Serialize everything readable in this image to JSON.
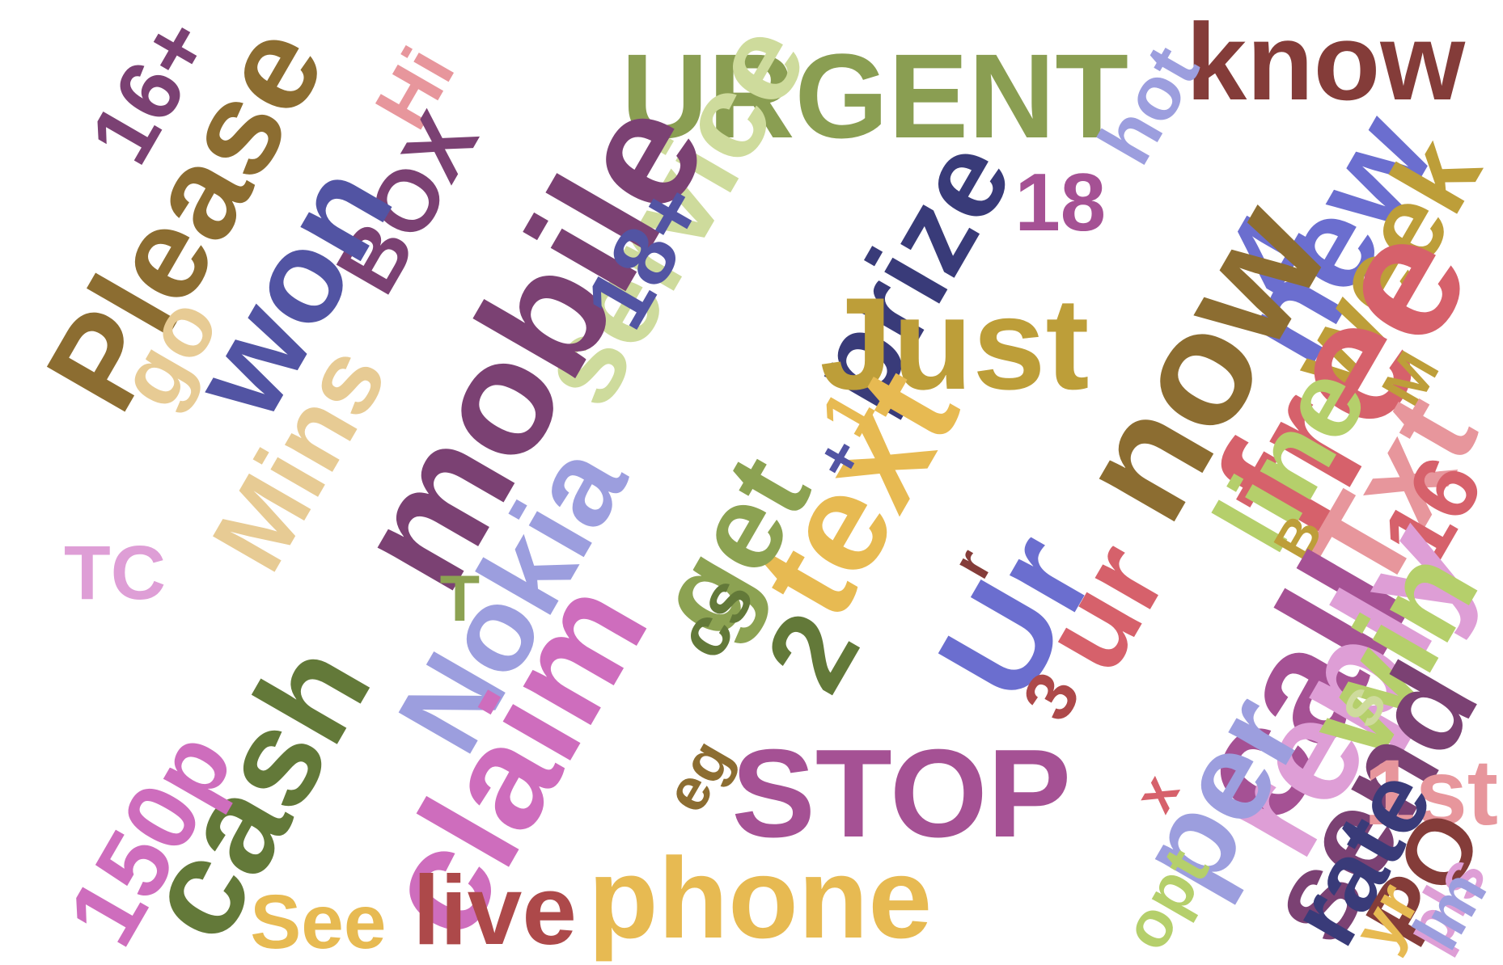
{
  "words": [
    {
      "text": "URGENT",
      "color": "#8a9e52"
    },
    {
      "text": "know",
      "color": "#843c39"
    },
    {
      "text": "service",
      "color": "#cedb9c"
    },
    {
      "text": "hot",
      "color": "#9c9ede"
    },
    {
      "text": "16+",
      "color": "#7b4173"
    },
    {
      "text": "Hi",
      "color": "#e7969c"
    },
    {
      "text": "Please",
      "color": "#8c6d31"
    },
    {
      "text": "BOX",
      "color": "#7b4173"
    },
    {
      "text": "won",
      "color": "#5254a3"
    },
    {
      "text": "mobile",
      "color": "#7b4173"
    },
    {
      "text": "18+",
      "color": "#5254a3"
    },
    {
      "text": "prize",
      "color": "#393b79"
    },
    {
      "text": "18",
      "color": "#a55194"
    },
    {
      "text": "new",
      "color": "#6b6ecf"
    },
    {
      "text": "week",
      "color": "#bd9e39"
    },
    {
      "text": "4",
      "color": "#6b6ecf"
    },
    {
      "text": "free",
      "color": "#d6616b"
    },
    {
      "text": "now",
      "color": "#8c6d31"
    },
    {
      "text": "Just",
      "color": "#bd9e39"
    },
    {
      "text": "go",
      "color": "#e7cb94"
    },
    {
      "text": "Mins",
      "color": "#e7cb94"
    },
    {
      "text": "1",
      "color": "#e7ba52"
    },
    {
      "text": "M",
      "color": "#bd9e39"
    },
    {
      "text": "Txt",
      "color": "#e7969c"
    },
    {
      "text": "16",
      "color": "#d6616b"
    },
    {
      "text": "Nokia",
      "color": "#9c9ede"
    },
    {
      "text": "text",
      "color": "#e7ba52"
    },
    {
      "text": "get",
      "color": "#8ca252"
    },
    {
      "text": "+",
      "color": "#5254a3"
    },
    {
      "text": "line",
      "color": "#b5cf6b"
    },
    {
      "text": "TC",
      "color": "#de9ed6"
    },
    {
      "text": "T",
      "color": "#8ca252"
    },
    {
      "text": "B",
      "color": "#bd9e39"
    },
    {
      "text": "cs",
      "color": "#637939"
    },
    {
      "text": "2",
      "color": "#637939"
    },
    {
      "text": "Ur",
      "color": "#6b6ecf"
    },
    {
      "text": "ur",
      "color": "#d6616b"
    },
    {
      "text": "r",
      "color": "#843c39"
    },
    {
      "text": "call",
      "color": "#a55194"
    },
    {
      "text": "reply",
      "color": "#de9ed6"
    },
    {
      "text": "win",
      "color": "#b5cf6b"
    },
    {
      "text": "3",
      "color": "#ad494a"
    },
    {
      "text": "cash",
      "color": "#637939"
    },
    {
      "text": "claim",
      "color": "#ce6dbd"
    },
    {
      "text": "STOP",
      "color": "#a55194"
    },
    {
      "text": "s",
      "color": "#cedb9c"
    },
    {
      "text": "150p",
      "color": "#ce6dbd"
    },
    {
      "text": "eg",
      "color": "#8c6d31"
    },
    {
      "text": "per",
      "color": "#9c9ede"
    },
    {
      "text": "send",
      "color": "#7b4173"
    },
    {
      "text": "1st",
      "color": "#e7969c"
    },
    {
      "text": "x",
      "color": "#d6616b"
    },
    {
      "text": "rate",
      "color": "#393b79"
    },
    {
      "text": "PO",
      "color": "#843c39"
    },
    {
      "text": "See",
      "color": "#e7ba52"
    },
    {
      "text": "live",
      "color": "#ad494a"
    },
    {
      "text": "phone",
      "color": "#e7ba52"
    },
    {
      "text": "opt",
      "color": "#b5cf6b"
    },
    {
      "text": "yr",
      "color": "#e7ba52"
    },
    {
      "text": "pls",
      "color": "#de9ed6"
    },
    {
      "text": "lm",
      "color": "#9c9ede"
    }
  ]
}
